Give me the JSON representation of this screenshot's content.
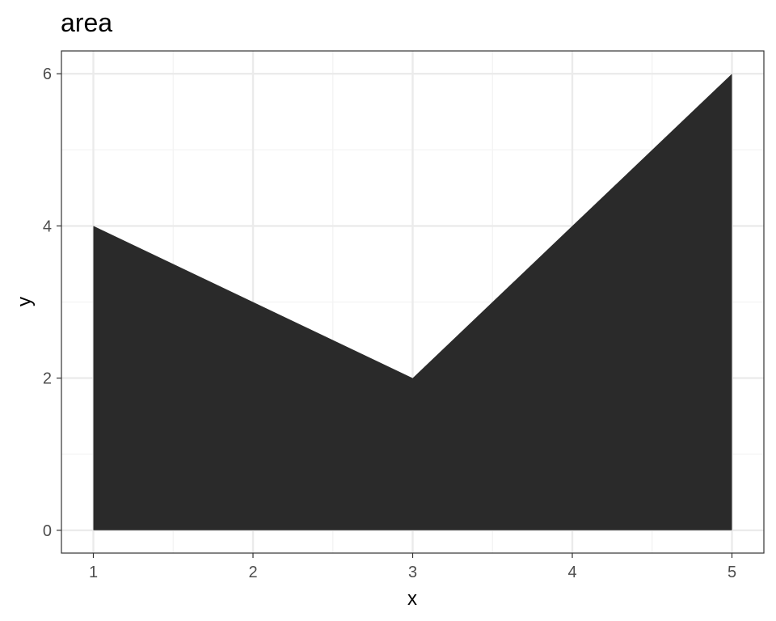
{
  "chart_data": {
    "type": "area",
    "title": "area",
    "xlabel": "x",
    "ylabel": "y",
    "x": [
      1,
      2,
      3,
      4,
      5
    ],
    "y": [
      4,
      3,
      2,
      4,
      6
    ],
    "xlim": [
      0.8,
      5.2
    ],
    "ylim": [
      -0.3,
      6.3
    ],
    "x_ticks": [
      1,
      2,
      3,
      4,
      5
    ],
    "y_ticks": [
      0,
      2,
      4,
      6
    ],
    "grid": true,
    "theme": "bw",
    "colors": {
      "fill": "#2a2a2a",
      "grid_major": "#ebebeb",
      "grid_minor": "#f3f3f3",
      "panel_border": "#333333",
      "tick": "#333333"
    }
  }
}
